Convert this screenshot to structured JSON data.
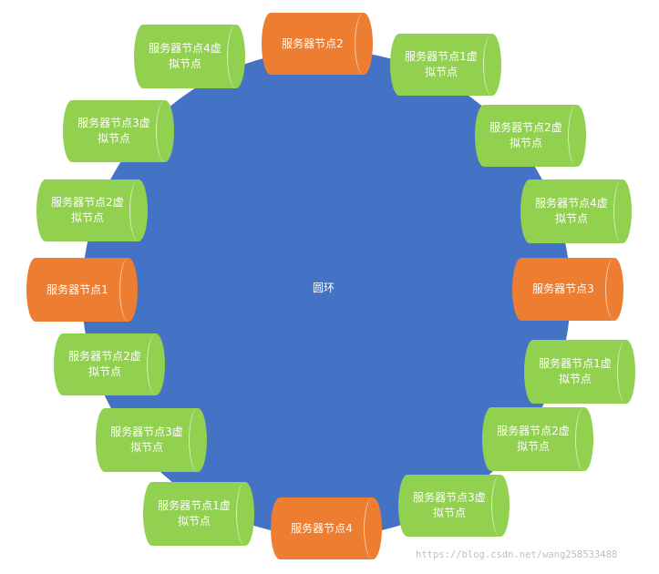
{
  "colors": {
    "ring": "#4472c4",
    "server_node": "#ed7d31",
    "virtual_node": "#92d050",
    "text": "#ffffff",
    "watermark": "#bfbfbf"
  },
  "ring": {
    "label": "圆环"
  },
  "nodes": [
    {
      "kind": "server",
      "text": "服务器节点2"
    },
    {
      "kind": "virtual",
      "text": "服务器节点1虚\n拟节点"
    },
    {
      "kind": "virtual",
      "text": "服务器节点2虚\n拟节点"
    },
    {
      "kind": "virtual",
      "text": "服务器节点4虚\n拟节点"
    },
    {
      "kind": "server",
      "text": "服务器节点3"
    },
    {
      "kind": "virtual",
      "text": "服务器节点1虚\n拟节点"
    },
    {
      "kind": "virtual",
      "text": "服务器节点2虚\n拟节点"
    },
    {
      "kind": "virtual",
      "text": "服务器节点3虚\n拟节点"
    },
    {
      "kind": "server",
      "text": "服务器节点4"
    },
    {
      "kind": "virtual",
      "text": "服务器节点1虚\n拟节点"
    },
    {
      "kind": "virtual",
      "text": "服务器节点3虚\n拟节点"
    },
    {
      "kind": "virtual",
      "text": "服务器节点2虚\n拟节点"
    },
    {
      "kind": "server",
      "text": "服务器节点1"
    },
    {
      "kind": "virtual",
      "text": "服务器节点2虚\n拟节点"
    },
    {
      "kind": "virtual",
      "text": "服务器节点3虚\n拟节点"
    },
    {
      "kind": "virtual",
      "text": "服务器节点4虚\n拟节点"
    }
  ],
  "watermark": "https://blog.csdn.net/wang258533488"
}
